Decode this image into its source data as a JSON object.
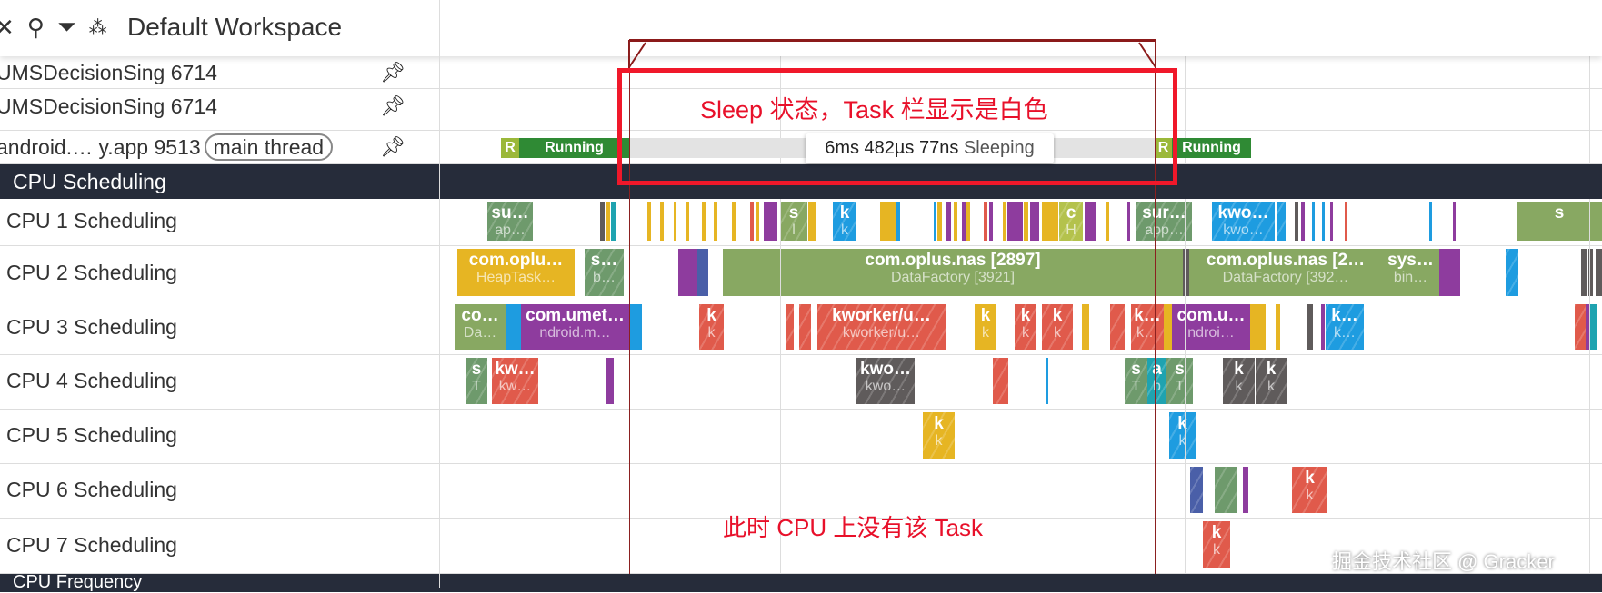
{
  "header": {
    "title": "Default Workspace",
    "icons": [
      "collapse-icon",
      "unpin-icon",
      "filter-icon",
      "workspace-icon"
    ]
  },
  "threads": [
    {
      "label": "UMSDecisionSing 6714"
    },
    {
      "label": "UMSDecisionSing 6714"
    },
    {
      "label": "android.…  y.app 9513",
      "badge": "main thread"
    }
  ],
  "thread_states": [
    {
      "label": "R",
      "color": "#9bb83a"
    },
    {
      "label": "Running",
      "color": "#2f8a34"
    },
    {
      "label": "",
      "color": "#e3e3e3"
    },
    {
      "label": "R",
      "color": "#9bb83a"
    },
    {
      "label": "Running",
      "color": "#2f8a34"
    }
  ],
  "tooltip": {
    "duration": "6ms 482µs 77ns",
    "state": "Sleeping"
  },
  "cpu_section": {
    "title": "CPU Scheduling"
  },
  "freq_section": {
    "title": "CPU Frequency"
  },
  "palette": {
    "g": "#88a862",
    "dg": "#6e9a6c",
    "y": "#e6b523",
    "r": "#e05a4b",
    "p": "#8e3c9e",
    "b": "#1e9ce0",
    "k": "#5f5b5b",
    "t": "#1fa3b0",
    "s": "#4a5fa8",
    "yg": "#b4c24c"
  },
  "cpu_rows": [
    {
      "label": "CPU 1 Scheduling",
      "slices": [
        {
          "t1": "su…",
          "t2": "ap…"
        },
        {
          "t1": "s",
          "t2": "l"
        },
        {
          "t1": "k",
          "t2": "k"
        },
        {
          "t1": "c",
          "t2": "H"
        },
        {
          "t1": "sur…",
          "t2": "app…"
        },
        {
          "t1": "kwo…",
          "t2": "kwo…"
        },
        {
          "t1": "s",
          "t2": ""
        }
      ]
    },
    {
      "label": "CPU 2 Scheduling",
      "slices": [
        {
          "t1": "com.oplu…",
          "t2": "HeapTask…"
        },
        {
          "t1": "s…",
          "t2": "b…"
        },
        {
          "t1": "com.oplus.nas [2897]",
          "t2": "DataFactory [3921]"
        },
        {
          "t1": "com.oplus.nas [2…",
          "t2": "DataFactory [392…"
        },
        {
          "t1": "sys…",
          "t2": "bin…"
        }
      ]
    },
    {
      "label": "CPU 3 Scheduling",
      "slices": [
        {
          "t1": "co…",
          "t2": "Da…"
        },
        {
          "t1": "com.umet…",
          "t2": "ndroid.m…"
        },
        {
          "t1": "k",
          "t2": "k"
        },
        {
          "t1": "kworker/u…",
          "t2": "kworker/u…"
        },
        {
          "t1": "k",
          "t2": "k"
        },
        {
          "t1": "k",
          "t2": "k"
        },
        {
          "t1": "k",
          "t2": "k"
        },
        {
          "t1": "k…",
          "t2": "k…"
        },
        {
          "t1": "com.u…",
          "t2": "ndroi…"
        },
        {
          "t1": "k…",
          "t2": "k…"
        }
      ]
    },
    {
      "label": "CPU 4 Scheduling",
      "slices": [
        {
          "t1": "s",
          "t2": "T"
        },
        {
          "t1": "kw…",
          "t2": "kw…"
        },
        {
          "t1": "kwo…",
          "t2": "kwo…"
        },
        {
          "t1": "s",
          "t2": "T"
        },
        {
          "t1": "a",
          "t2": "b"
        },
        {
          "t1": "s",
          "t2": "T"
        },
        {
          "t1": "k",
          "t2": "k"
        },
        {
          "t1": "k",
          "t2": "k"
        }
      ]
    },
    {
      "label": "CPU 5 Scheduling",
      "slices": [
        {
          "t1": "k",
          "t2": "k"
        },
        {
          "t1": "k",
          "t2": "k"
        }
      ]
    },
    {
      "label": "CPU 6 Scheduling",
      "slices": [
        {
          "t1": "k",
          "t2": "k"
        }
      ]
    },
    {
      "label": "CPU 7 Scheduling",
      "slices": [
        {
          "t1": "k",
          "t2": "k"
        }
      ]
    }
  ],
  "annotations": {
    "sleep_note": "Sleep 状态，Task 栏显示是白色",
    "cpu_note": "此时 CPU 上没有该 Task"
  },
  "watermark": "掘金技术社区 @ Gracker"
}
